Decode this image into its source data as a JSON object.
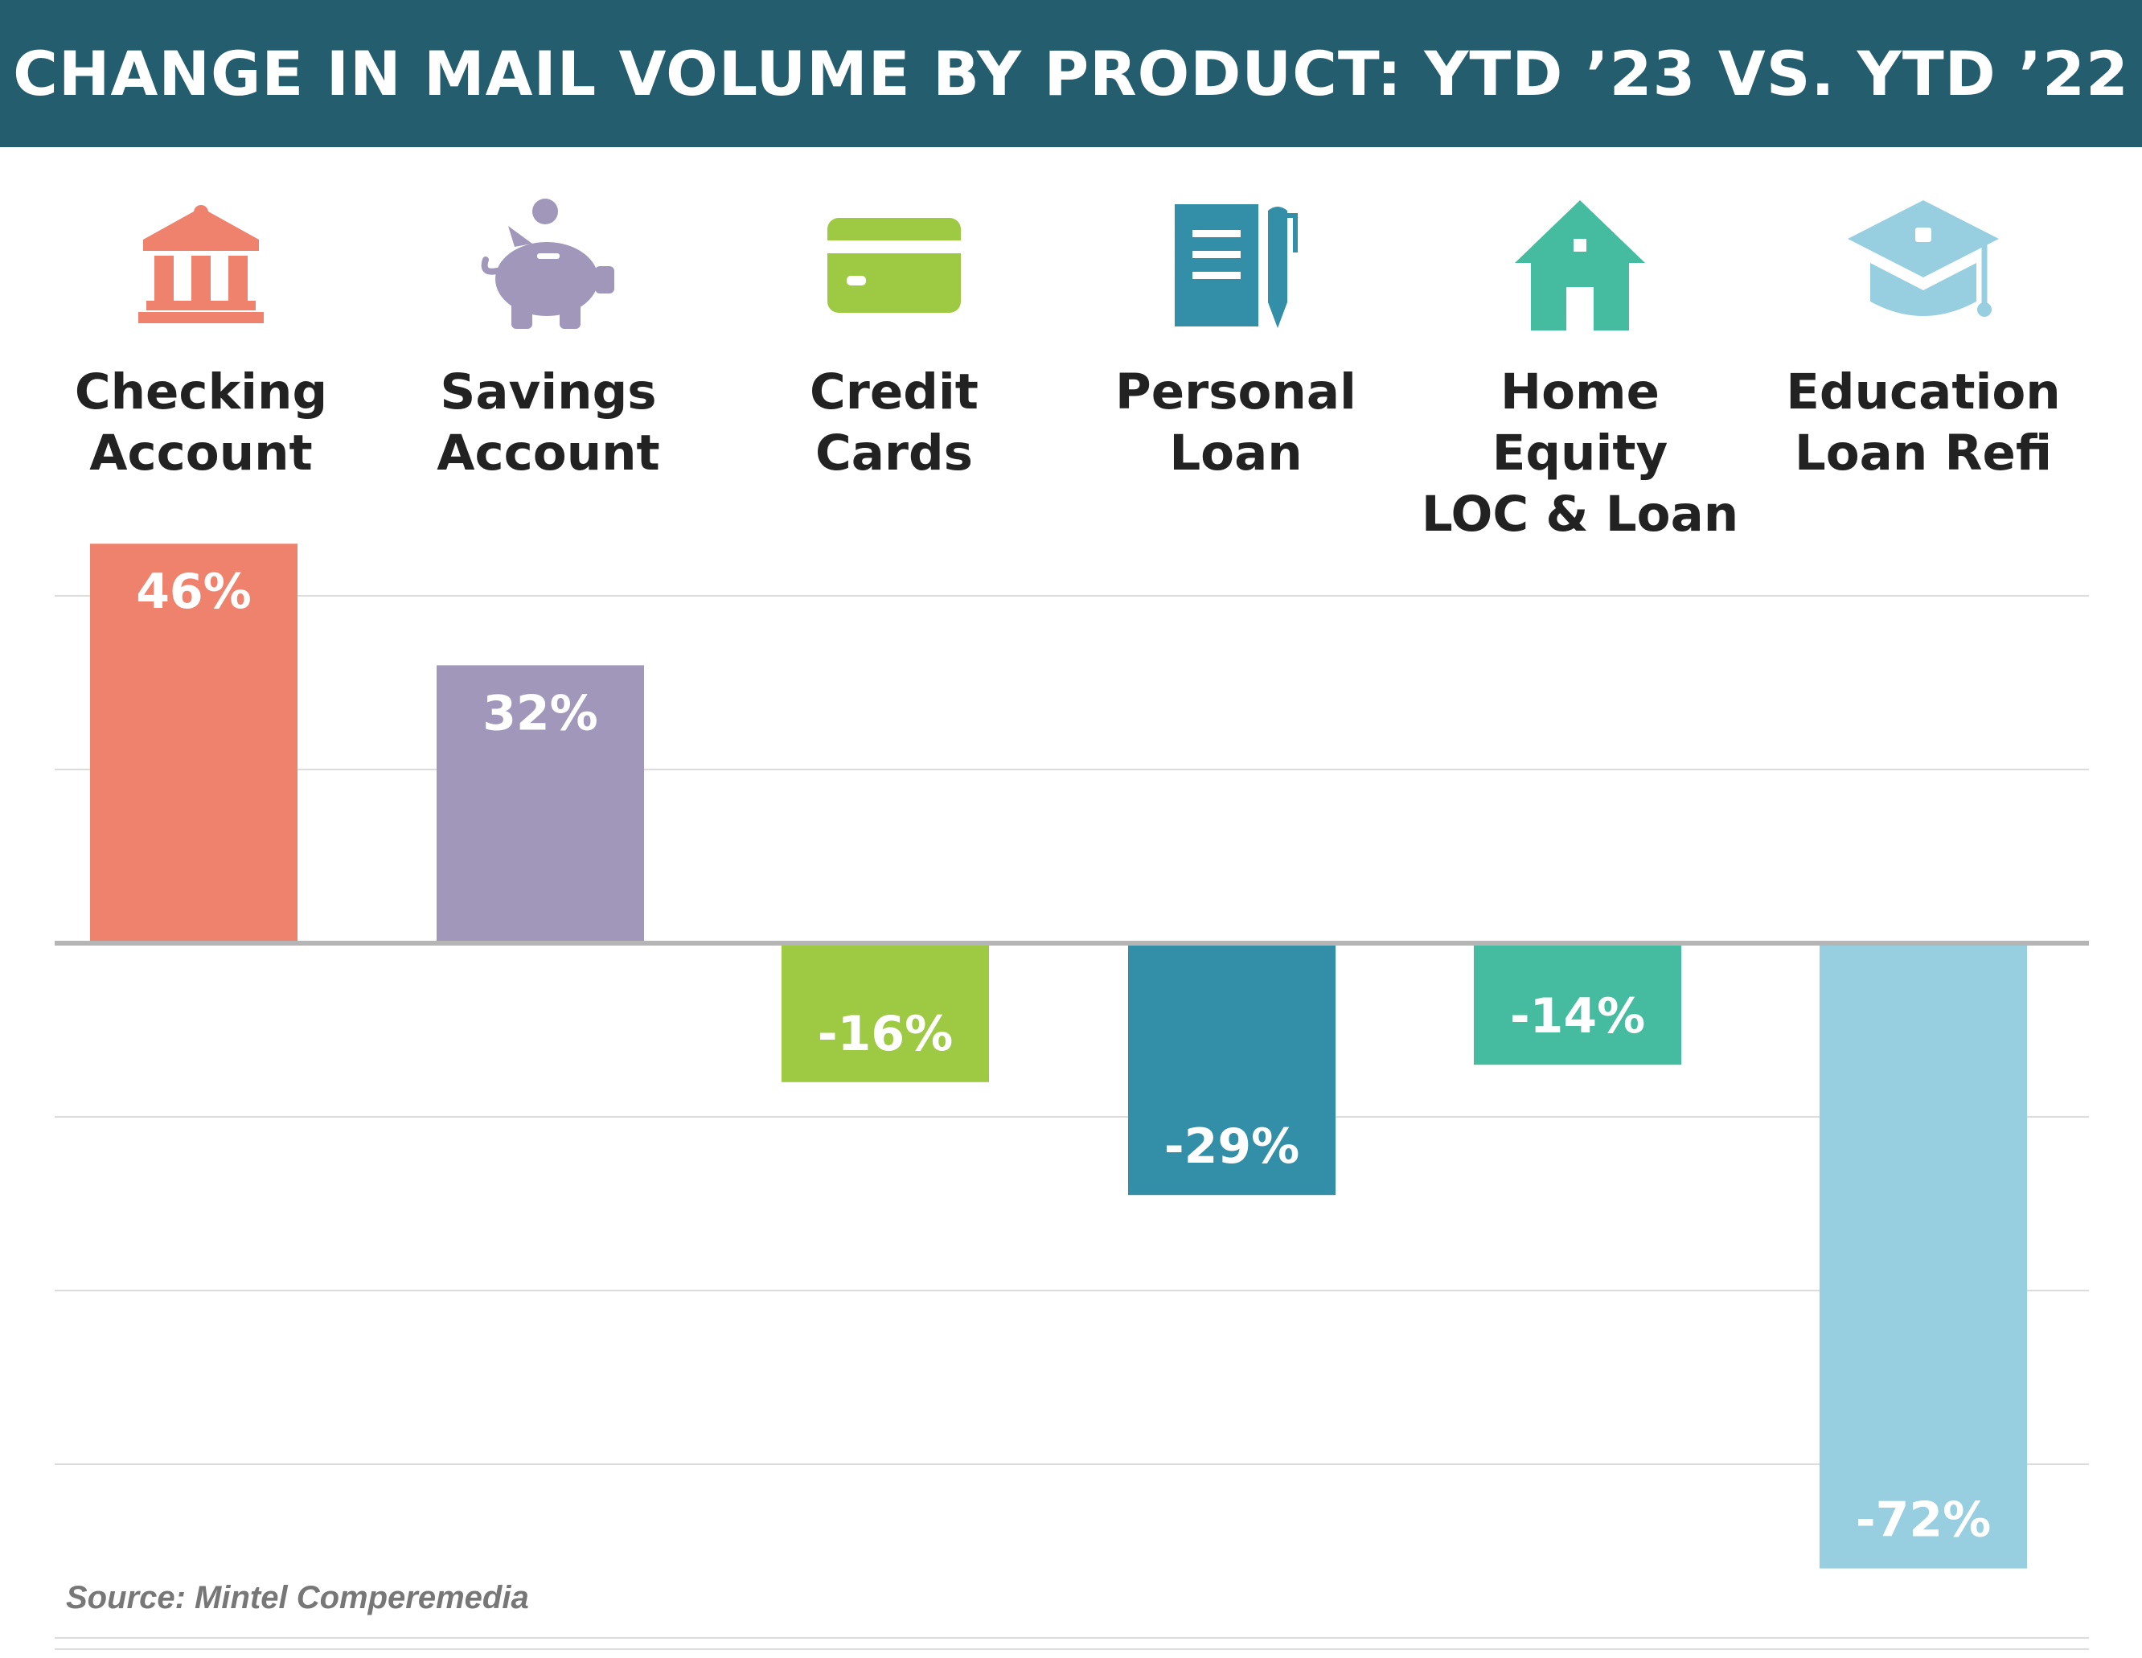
{
  "title": "CHANGE IN MAIL VOLUME BY PRODUCT: YTD ’23 VS. YTD ’22",
  "colors": {
    "header_bg": "#245e6e",
    "header_text": "#ffffff",
    "gridline": "#dcdcdc",
    "baseline": "#b5b5b5"
  },
  "categories": [
    {
      "label": "Checking\nAccount",
      "icon": "bank-icon",
      "color": "#ef826d"
    },
    {
      "label": "Savings\nAccount",
      "icon": "piggy-bank-icon",
      "color": "#a197ba"
    },
    {
      "label": "Credit\nCards",
      "icon": "credit-card-icon",
      "color": "#9dc943"
    },
    {
      "label": "Personal\nLoan",
      "icon": "notebook-pen-icon",
      "color": "#338ea7"
    },
    {
      "label": "Home Equity\nLOC & Loan",
      "icon": "house-icon",
      "color": "#45bba0"
    },
    {
      "label": "Education\nLoan Refi",
      "icon": "graduation-cap-icon",
      "color": "#98cfe0"
    }
  ],
  "chart_data": {
    "type": "bar",
    "categories": [
      "Checking Account",
      "Savings Account",
      "Credit Cards",
      "Personal Loan",
      "Home Equity LOC & Loan",
      "Education Loan Refi"
    ],
    "values": [
      46,
      32,
      -16,
      -29,
      -14,
      -72
    ],
    "data_labels": [
      "46%",
      "32%",
      "-16%",
      "-29%",
      "-14%",
      "-72%"
    ],
    "unit": "%",
    "ylim": [
      -80,
      46
    ],
    "gridlines": [
      40,
      20,
      -20,
      -40,
      -60,
      -80
    ],
    "grid": true,
    "legend": "none"
  },
  "source": "Source: Mintel Comperemedia"
}
